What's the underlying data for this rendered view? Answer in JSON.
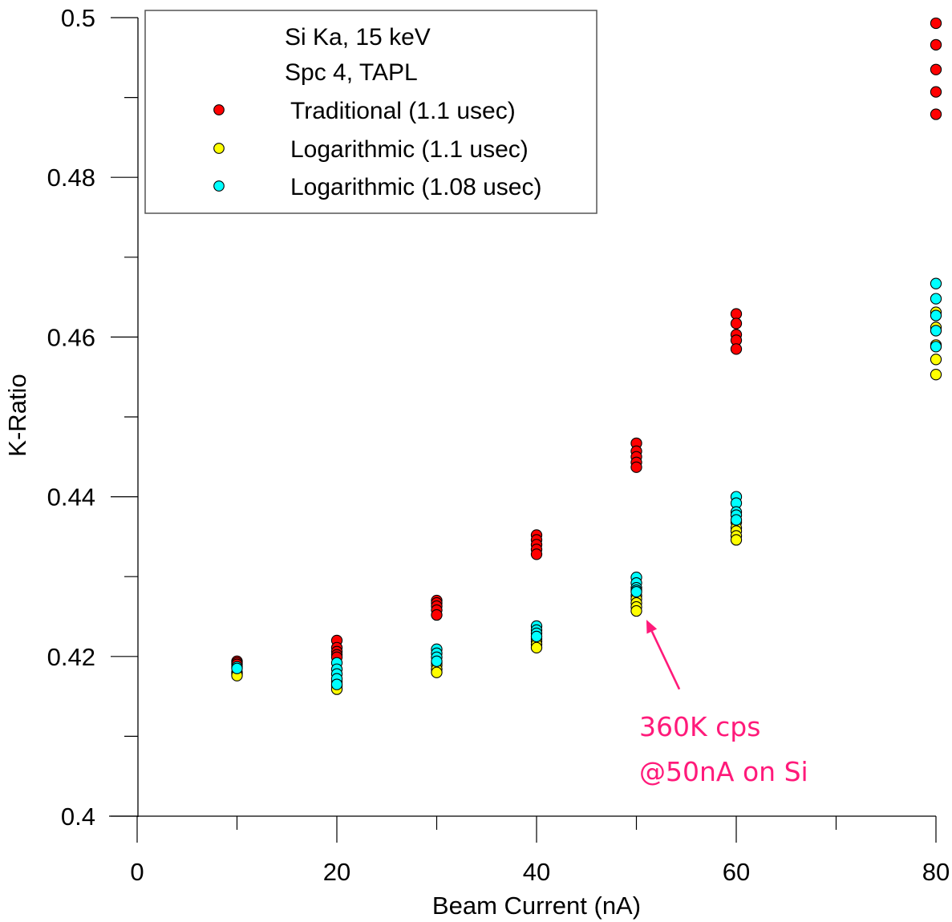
{
  "chart_data": {
    "type": "scatter",
    "title": "",
    "xlabel": "Beam Current (nA)",
    "ylabel": "K-Ratio",
    "xlim": [
      0,
      80
    ],
    "ylim": [
      0.4,
      0.5
    ],
    "x_ticks": [
      0,
      20,
      40,
      60,
      80
    ],
    "x_tick_labels": [
      "0",
      "20",
      "40",
      "60",
      "80"
    ],
    "x_minor_ticks": [
      10,
      30,
      50,
      70
    ],
    "y_ticks": [
      0.4,
      0.42,
      0.44,
      0.46,
      0.48,
      0.5
    ],
    "y_tick_labels": [
      "0.4",
      "0.42",
      "0.44",
      "0.46",
      "0.48",
      "0.5"
    ],
    "y_minor_ticks": [
      0.41,
      0.43,
      0.45,
      0.47,
      0.49
    ],
    "grid": false,
    "legend": {
      "placement": "top-left",
      "header": [
        "Si Ka, 15 keV",
        "Spc 4, TAPL"
      ]
    },
    "series": [
      {
        "name": "Traditional (1.1 usec)",
        "color": "#ff0000",
        "points": [
          [
            10,
            0.4194
          ],
          [
            10,
            0.4192
          ],
          [
            10,
            0.419
          ],
          [
            20,
            0.422
          ],
          [
            20,
            0.4211
          ],
          [
            20,
            0.4206
          ],
          [
            20,
            0.4202
          ],
          [
            20,
            0.4199
          ],
          [
            30,
            0.427
          ],
          [
            30,
            0.4267
          ],
          [
            30,
            0.4263
          ],
          [
            30,
            0.4258
          ],
          [
            30,
            0.4252
          ],
          [
            40,
            0.4352
          ],
          [
            40,
            0.4346
          ],
          [
            40,
            0.434
          ],
          [
            40,
            0.4334
          ],
          [
            40,
            0.4328
          ],
          [
            50,
            0.4467
          ],
          [
            50,
            0.4457
          ],
          [
            50,
            0.445
          ],
          [
            50,
            0.4443
          ],
          [
            50,
            0.4437
          ],
          [
            60,
            0.4629
          ],
          [
            60,
            0.4617
          ],
          [
            60,
            0.4603
          ],
          [
            60,
            0.4596
          ],
          [
            60,
            0.4585
          ],
          [
            80,
            0.4993
          ],
          [
            80,
            0.4966
          ],
          [
            80,
            0.4935
          ],
          [
            80,
            0.4907
          ],
          [
            80,
            0.4879
          ]
        ]
      },
      {
        "name": "Logarithmic (1.1 usec)",
        "color": "#ffff00",
        "points": [
          [
            10,
            0.418
          ],
          [
            10,
            0.4178
          ],
          [
            10,
            0.4176
          ],
          [
            20,
            0.4168
          ],
          [
            20,
            0.4163
          ],
          [
            20,
            0.4159
          ],
          [
            30,
            0.4192
          ],
          [
            30,
            0.4189
          ],
          [
            30,
            0.4184
          ],
          [
            30,
            0.418
          ],
          [
            40,
            0.4222
          ],
          [
            40,
            0.4219
          ],
          [
            40,
            0.4215
          ],
          [
            40,
            0.4211
          ],
          [
            50,
            0.4276
          ],
          [
            50,
            0.4272
          ],
          [
            50,
            0.4267
          ],
          [
            50,
            0.4262
          ],
          [
            50,
            0.4257
          ],
          [
            60,
            0.4368
          ],
          [
            60,
            0.4361
          ],
          [
            60,
            0.4357
          ],
          [
            60,
            0.4351
          ],
          [
            60,
            0.4346
          ],
          [
            80,
            0.4631
          ],
          [
            80,
            0.4612
          ],
          [
            80,
            0.459
          ],
          [
            80,
            0.4572
          ],
          [
            80,
            0.4553
          ]
        ]
      },
      {
        "name": "Logarithmic (1.08 usec)",
        "color": "#00ffff",
        "points": [
          [
            10,
            0.4187
          ],
          [
            10,
            0.4185
          ],
          [
            20,
            0.4192
          ],
          [
            20,
            0.4184
          ],
          [
            20,
            0.4178
          ],
          [
            20,
            0.4172
          ],
          [
            20,
            0.4165
          ],
          [
            30,
            0.4209
          ],
          [
            30,
            0.4204
          ],
          [
            30,
            0.4199
          ],
          [
            30,
            0.4194
          ],
          [
            40,
            0.4238
          ],
          [
            40,
            0.4233
          ],
          [
            40,
            0.4229
          ],
          [
            40,
            0.4225
          ],
          [
            50,
            0.4299
          ],
          [
            50,
            0.4292
          ],
          [
            50,
            0.4286
          ],
          [
            50,
            0.4283
          ],
          [
            50,
            0.4281
          ],
          [
            60,
            0.44
          ],
          [
            60,
            0.4392
          ],
          [
            60,
            0.4381
          ],
          [
            60,
            0.4377
          ],
          [
            60,
            0.4371
          ],
          [
            80,
            0.4667
          ],
          [
            80,
            0.4648
          ],
          [
            80,
            0.4627
          ],
          [
            80,
            0.4608
          ],
          [
            80,
            0.4588
          ]
        ]
      }
    ],
    "annotations": [
      {
        "lines": [
          "360K cps",
          "@50nA on Si"
        ],
        "color": "#ff1a7a",
        "arrow_from": [
          54.3,
          0.4159
        ],
        "arrow_to": [
          51.0,
          0.4246
        ]
      }
    ]
  }
}
